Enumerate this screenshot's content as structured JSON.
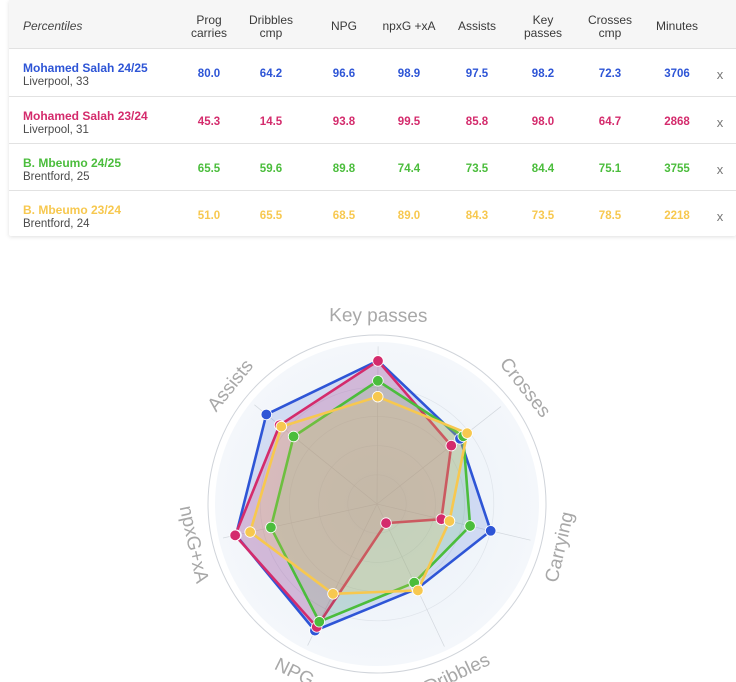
{
  "table": {
    "header": {
      "percentiles": "Percentiles",
      "columns": [
        [
          "Prog",
          "carries"
        ],
        [
          "Dribbles",
          "cmp"
        ],
        [
          "NPG"
        ],
        [
          "npxG +xA"
        ],
        [
          "Assists"
        ],
        [
          "Key",
          "passes"
        ],
        [
          "Crosses",
          "cmp"
        ],
        [
          "Minutes"
        ]
      ]
    },
    "rows": [
      {
        "name": "Mohamed Salah",
        "season": "24/25",
        "club": "Liverpool, 33",
        "color": "#2e55d6",
        "values": [
          "80.0",
          "64.2",
          "96.6",
          "98.9",
          "97.5",
          "98.2",
          "72.3",
          "3706"
        ],
        "remove": "x"
      },
      {
        "name": "Mohamed Salah",
        "season": "23/24",
        "club": "Liverpool, 31",
        "color": "#d42b6c",
        "values": [
          "45.3",
          "14.5",
          "93.8",
          "99.5",
          "85.8",
          "98.0",
          "64.7",
          "2868"
        ],
        "remove": "x"
      },
      {
        "name": "B. Mbeumo",
        "season": "24/25",
        "club": "Brentford, 25",
        "color": "#4bbd3c",
        "values": [
          "65.5",
          "59.6",
          "89.8",
          "74.4",
          "73.5",
          "84.4",
          "75.1",
          "3755"
        ],
        "remove": "x"
      },
      {
        "name": "B. Mbeumo",
        "season": "23/24",
        "club": "Brentford, 24",
        "color": "#f7c84f",
        "values": [
          "51.0",
          "65.5",
          "68.5",
          "89.0",
          "84.3",
          "73.5",
          "78.5",
          "2218"
        ],
        "remove": "x"
      }
    ]
  },
  "chart_data": {
    "type": "radar",
    "axes": [
      "Key passes",
      "Crosses",
      "Carrying",
      "Dribbles",
      "NPG",
      "npxG+xA",
      "Assists"
    ],
    "range": [
      0,
      100
    ],
    "series": [
      {
        "name": "Mohamed Salah 24/25",
        "color": "#2e55d6",
        "fill_opacity": 0.16,
        "values": [
          98.2,
          72.3,
          80.0,
          64.2,
          96.6,
          98.9,
          97.5
        ]
      },
      {
        "name": "Mohamed Salah 23/24",
        "color": "#d42b6c",
        "fill_opacity": 0.2,
        "values": [
          98.0,
          64.7,
          45.3,
          14.5,
          93.8,
          99.5,
          85.8
        ]
      },
      {
        "name": "B. Mbeumo 24/25",
        "color": "#4bbd3c",
        "fill_opacity": 0.14,
        "values": [
          84.4,
          75.1,
          65.5,
          59.6,
          89.8,
          74.4,
          73.5
        ]
      },
      {
        "name": "B. Mbeumo 23/24",
        "color": "#f7c84f",
        "fill_opacity": 0.2,
        "values": [
          73.5,
          78.5,
          51.0,
          65.5,
          68.5,
          89.0,
          84.3
        ]
      }
    ]
  }
}
